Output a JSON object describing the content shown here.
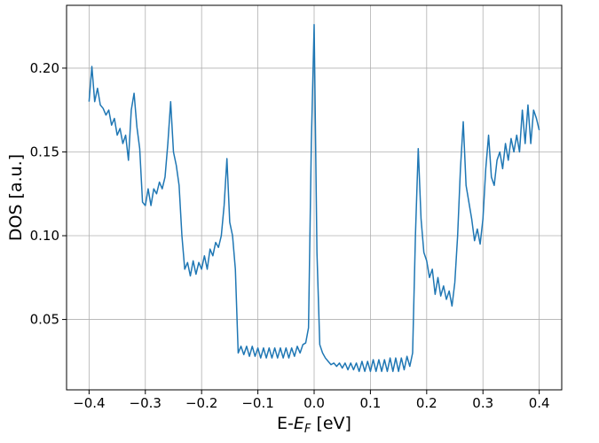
{
  "chart_data": {
    "type": "line",
    "xlabel": {
      "prefix": "E-",
      "symbol": "E",
      "subscript": "F",
      "suffix": " [eV]"
    },
    "ylabel": "DOS [a.u.]",
    "color": "#1f77b4",
    "grid": true,
    "xlim": [
      -0.44,
      0.44
    ],
    "ylim": [
      0.008,
      0.2375
    ],
    "xticks": [
      {
        "value": -0.4,
        "label": "−0.4"
      },
      {
        "value": -0.3,
        "label": "−0.3"
      },
      {
        "value": -0.2,
        "label": "−0.2"
      },
      {
        "value": -0.1,
        "label": "−0.1"
      },
      {
        "value": 0,
        "label": "0.0"
      },
      0.1,
      0.2,
      0.3,
      0.4
    ],
    "yticks": [
      0.05,
      {
        "value": 0.1,
        "label": "0.10"
      },
      0.15,
      {
        "value": 0.2,
        "label": "0.20"
      }
    ],
    "x": [
      -0.4,
      -0.395,
      -0.39,
      -0.385,
      -0.38,
      -0.375,
      -0.37,
      -0.365,
      -0.36,
      -0.355,
      -0.35,
      -0.345,
      -0.34,
      -0.335,
      -0.33,
      -0.325,
      -0.32,
      -0.315,
      -0.31,
      -0.305,
      -0.3,
      -0.295,
      -0.29,
      -0.285,
      -0.28,
      -0.275,
      -0.27,
      -0.265,
      -0.26,
      -0.255,
      -0.25,
      -0.245,
      -0.24,
      -0.235,
      -0.23,
      -0.225,
      -0.22,
      -0.215,
      -0.21,
      -0.205,
      -0.2,
      -0.195,
      -0.19,
      -0.185,
      -0.18,
      -0.175,
      -0.17,
      -0.165,
      -0.16,
      -0.155,
      -0.15,
      -0.145,
      -0.14,
      -0.135,
      -0.13,
      -0.125,
      -0.12,
      -0.115,
      -0.11,
      -0.105,
      -0.1,
      -0.095,
      -0.09,
      -0.085,
      -0.08,
      -0.075,
      -0.07,
      -0.065,
      -0.06,
      -0.055,
      -0.05,
      -0.045,
      -0.04,
      -0.035,
      -0.03,
      -0.025,
      -0.02,
      -0.015,
      -0.01,
      -0.005,
      0,
      0.005,
      0.01,
      0.015,
      0.02,
      0.025,
      0.03,
      0.035,
      0.04,
      0.045,
      0.05,
      0.055,
      0.06,
      0.065,
      0.07,
      0.075,
      0.08,
      0.085,
      0.09,
      0.095,
      0.1,
      0.105,
      0.11,
      0.115,
      0.12,
      0.125,
      0.13,
      0.135,
      0.14,
      0.145,
      0.15,
      0.155,
      0.16,
      0.165,
      0.17,
      0.175,
      0.18,
      0.185,
      0.19,
      0.195,
      0.2,
      0.205,
      0.21,
      0.215,
      0.22,
      0.225,
      0.23,
      0.235,
      0.24,
      0.245,
      0.25,
      0.255,
      0.26,
      0.265,
      0.27,
      0.275,
      0.28,
      0.285,
      0.29,
      0.295,
      0.3,
      0.305,
      0.31,
      0.315,
      0.32,
      0.325,
      0.33,
      0.335,
      0.34,
      0.345,
      0.35,
      0.355,
      0.36,
      0.365,
      0.37,
      0.375,
      0.38,
      0.385,
      0.39,
      0.395,
      0.4
    ],
    "values": [
      0.18,
      0.201,
      0.18,
      0.188,
      0.178,
      0.176,
      0.172,
      0.175,
      0.166,
      0.17,
      0.16,
      0.164,
      0.155,
      0.16,
      0.145,
      0.175,
      0.185,
      0.165,
      0.152,
      0.12,
      0.118,
      0.128,
      0.118,
      0.128,
      0.125,
      0.132,
      0.128,
      0.135,
      0.155,
      0.18,
      0.15,
      0.142,
      0.13,
      0.1,
      0.08,
      0.084,
      0.076,
      0.085,
      0.077,
      0.084,
      0.08,
      0.088,
      0.08,
      0.092,
      0.088,
      0.096,
      0.093,
      0.1,
      0.118,
      0.146,
      0.108,
      0.1,
      0.08,
      0.03,
      0.034,
      0.029,
      0.034,
      0.028,
      0.034,
      0.028,
      0.033,
      0.027,
      0.033,
      0.027,
      0.033,
      0.027,
      0.033,
      0.027,
      0.033,
      0.027,
      0.033,
      0.027,
      0.033,
      0.028,
      0.034,
      0.03,
      0.035,
      0.036,
      0.045,
      0.155,
      0.226,
      0.09,
      0.035,
      0.03,
      0.027,
      0.025,
      0.023,
      0.024,
      0.022,
      0.024,
      0.021,
      0.024,
      0.02,
      0.024,
      0.02,
      0.024,
      0.019,
      0.025,
      0.019,
      0.025,
      0.019,
      0.026,
      0.019,
      0.026,
      0.019,
      0.026,
      0.019,
      0.027,
      0.019,
      0.027,
      0.019,
      0.027,
      0.02,
      0.028,
      0.022,
      0.03,
      0.1,
      0.152,
      0.11,
      0.09,
      0.085,
      0.075,
      0.08,
      0.065,
      0.075,
      0.064,
      0.07,
      0.062,
      0.067,
      0.058,
      0.072,
      0.1,
      0.14,
      0.168,
      0.13,
      0.12,
      0.11,
      0.097,
      0.104,
      0.095,
      0.11,
      0.14,
      0.16,
      0.135,
      0.13,
      0.145,
      0.15,
      0.14,
      0.155,
      0.145,
      0.158,
      0.15,
      0.16,
      0.15,
      0.175,
      0.155,
      0.178,
      0.155,
      0.175,
      0.17,
      0.163
    ]
  }
}
